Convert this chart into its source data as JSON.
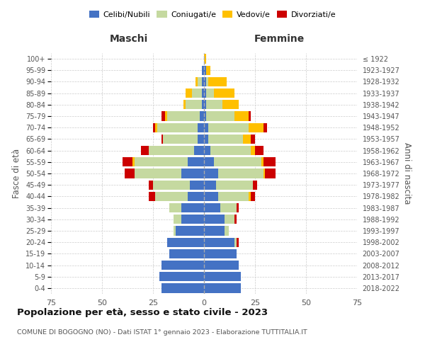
{
  "age_groups": [
    "0-4",
    "5-9",
    "10-14",
    "15-19",
    "20-24",
    "25-29",
    "30-34",
    "35-39",
    "40-44",
    "45-49",
    "50-54",
    "55-59",
    "60-64",
    "65-69",
    "70-74",
    "75-79",
    "80-84",
    "85-89",
    "90-94",
    "95-99",
    "100+"
  ],
  "birth_years": [
    "2018-2022",
    "2013-2017",
    "2008-2012",
    "2003-2007",
    "1998-2002",
    "1993-1997",
    "1988-1992",
    "1983-1987",
    "1978-1982",
    "1973-1977",
    "1968-1972",
    "1963-1967",
    "1958-1962",
    "1953-1957",
    "1948-1952",
    "1943-1947",
    "1938-1942",
    "1933-1937",
    "1928-1932",
    "1923-1927",
    "≤ 1922"
  ],
  "colors": {
    "celibi": "#4472c4",
    "coniugati": "#c5d9a0",
    "vedovi": "#ffc000",
    "divorziati": "#cc0000"
  },
  "maschi": {
    "celibi": [
      21,
      22,
      21,
      17,
      18,
      14,
      11,
      11,
      8,
      7,
      11,
      8,
      5,
      3,
      3,
      2,
      1,
      1,
      1,
      1,
      0
    ],
    "coniugati": [
      0,
      0,
      0,
      0,
      0,
      1,
      4,
      6,
      16,
      18,
      23,
      26,
      22,
      17,
      20,
      16,
      8,
      5,
      2,
      0,
      0
    ],
    "vedovi": [
      0,
      0,
      0,
      0,
      0,
      0,
      0,
      0,
      0,
      0,
      0,
      1,
      0,
      0,
      1,
      1,
      1,
      3,
      1,
      0,
      0
    ],
    "divorziati": [
      0,
      0,
      0,
      0,
      0,
      0,
      0,
      0,
      3,
      2,
      5,
      5,
      4,
      1,
      1,
      2,
      0,
      0,
      0,
      0,
      0
    ]
  },
  "femmine": {
    "celibi": [
      18,
      18,
      17,
      16,
      15,
      10,
      10,
      8,
      7,
      6,
      7,
      5,
      3,
      2,
      2,
      1,
      1,
      1,
      1,
      1,
      0
    ],
    "coniugati": [
      0,
      0,
      0,
      0,
      1,
      2,
      5,
      8,
      15,
      18,
      22,
      23,
      20,
      17,
      20,
      14,
      8,
      4,
      1,
      0,
      0
    ],
    "vedovi": [
      0,
      0,
      0,
      0,
      0,
      0,
      0,
      0,
      1,
      0,
      1,
      1,
      2,
      4,
      7,
      7,
      8,
      10,
      9,
      2,
      1
    ],
    "divorziati": [
      0,
      0,
      0,
      0,
      1,
      0,
      1,
      1,
      2,
      2,
      5,
      6,
      4,
      2,
      2,
      1,
      0,
      0,
      0,
      0,
      0
    ]
  },
  "xlim": 75,
  "title": "Popolazione per età, sesso e stato civile - 2023",
  "subtitle": "COMUNE DI BOGOGNO (NO) - Dati ISTAT 1° gennaio 2023 - Elaborazione TUTTITALIA.IT",
  "xlabel_left": "Maschi",
  "xlabel_right": "Femmine",
  "ylabel_left": "Fasce di età",
  "ylabel_right": "Anni di nascita",
  "xticks": [
    -75,
    -50,
    -25,
    0,
    25,
    50,
    75
  ]
}
